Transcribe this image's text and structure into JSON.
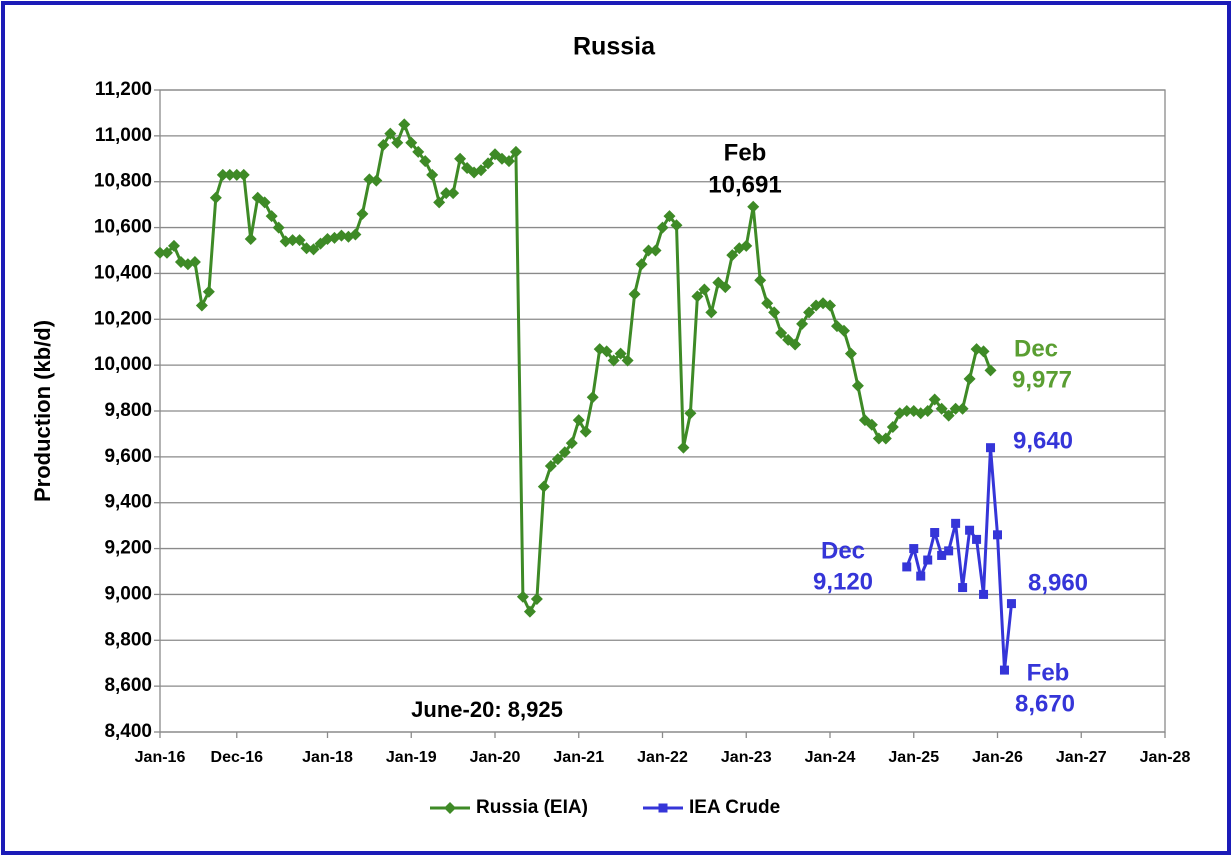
{
  "chart_data": {
    "type": "line",
    "title": "Russia",
    "y_label": "Production (kb/d)",
    "ylim": [
      8400,
      11200
    ],
    "yticks": [
      {
        "value": 8400,
        "label": "8,400"
      },
      {
        "value": 8600,
        "label": "8,600"
      },
      {
        "value": 8800,
        "label": "8,800"
      },
      {
        "value": 9000,
        "label": "9,000"
      },
      {
        "value": 9200,
        "label": "9,200"
      },
      {
        "value": 9400,
        "label": "9,400"
      },
      {
        "value": 9600,
        "label": "9,600"
      },
      {
        "value": 9800,
        "label": "9,800"
      },
      {
        "value": 10000,
        "label": "10,000"
      },
      {
        "value": 10200,
        "label": "10,200"
      },
      {
        "value": 10400,
        "label": "10,400"
      },
      {
        "value": 10600,
        "label": "10,600"
      },
      {
        "value": 10800,
        "label": "10,800"
      },
      {
        "value": 11000,
        "label": "11,000"
      },
      {
        "value": 11200,
        "label": "11,200"
      }
    ],
    "xlim": [
      "2016-01",
      "2028-01"
    ],
    "xticks": [
      {
        "value": "2016-01",
        "label": "Jan-16"
      },
      {
        "value": "2016-12",
        "label": "Dec-16"
      },
      {
        "value": "2018-01",
        "label": "Jan-18"
      },
      {
        "value": "2019-01",
        "label": "Jan-19"
      },
      {
        "value": "2020-01",
        "label": "Jan-20"
      },
      {
        "value": "2021-01",
        "label": "Jan-21"
      },
      {
        "value": "2022-01",
        "label": "Jan-22"
      },
      {
        "value": "2023-01",
        "label": "Jan-23"
      },
      {
        "value": "2024-01",
        "label": "Jan-24"
      },
      {
        "value": "2025-01",
        "label": "Jan-25"
      },
      {
        "value": "2026-01",
        "label": "Jan-26"
      },
      {
        "value": "2027-01",
        "label": "Jan-27"
      },
      {
        "value": "2028-01",
        "label": "Jan-28"
      }
    ],
    "grid": true,
    "legend": "bottom",
    "series": [
      {
        "name": "Russia (EIA)",
        "color": "#3e8a26",
        "marker": "diamond",
        "x": [
          "2016-01",
          "2016-02",
          "2016-03",
          "2016-04",
          "2016-05",
          "2016-06",
          "2016-07",
          "2016-08",
          "2016-09",
          "2016-10",
          "2016-11",
          "2016-12",
          "2017-01",
          "2017-02",
          "2017-03",
          "2017-04",
          "2017-05",
          "2017-06",
          "2017-07",
          "2017-08",
          "2017-09",
          "2017-10",
          "2017-11",
          "2017-12",
          "2018-01",
          "2018-02",
          "2018-03",
          "2018-04",
          "2018-05",
          "2018-06",
          "2018-07",
          "2018-08",
          "2018-09",
          "2018-10",
          "2018-11",
          "2018-12",
          "2019-01",
          "2019-02",
          "2019-03",
          "2019-04",
          "2019-05",
          "2019-06",
          "2019-07",
          "2019-08",
          "2019-09",
          "2019-10",
          "2019-11",
          "2019-12",
          "2020-01",
          "2020-02",
          "2020-03",
          "2020-04",
          "2020-05",
          "2020-06",
          "2020-07",
          "2020-08",
          "2020-09",
          "2020-10",
          "2020-11",
          "2020-12",
          "2021-01",
          "2021-02",
          "2021-03",
          "2021-04",
          "2021-05",
          "2021-06",
          "2021-07",
          "2021-08",
          "2021-09",
          "2021-10",
          "2021-11",
          "2021-12",
          "2022-01",
          "2022-02",
          "2022-03",
          "2022-04",
          "2022-05",
          "2022-06",
          "2022-07",
          "2022-08",
          "2022-09",
          "2022-10",
          "2022-11",
          "2022-12",
          "2023-01",
          "2023-02",
          "2023-03",
          "2023-04",
          "2023-05",
          "2023-06",
          "2023-07",
          "2023-08",
          "2023-09",
          "2023-10",
          "2023-11",
          "2023-12",
          "2024-01",
          "2024-02",
          "2024-03",
          "2024-04",
          "2024-05",
          "2024-06",
          "2024-07",
          "2024-08",
          "2024-09",
          "2024-10",
          "2024-11",
          "2024-12",
          "2025-01",
          "2025-02",
          "2025-03",
          "2025-04",
          "2025-05",
          "2025-06",
          "2025-07",
          "2025-08",
          "2025-09",
          "2025-10",
          "2025-11",
          "2025-12"
        ],
        "values": [
          10490,
          10490,
          10520,
          10450,
          10440,
          10450,
          10260,
          10320,
          10730,
          10830,
          10830,
          10830,
          10830,
          10550,
          10730,
          10710,
          10650,
          10600,
          10540,
          10545,
          10545,
          10510,
          10505,
          10530,
          10550,
          10555,
          10565,
          10560,
          10570,
          10660,
          10810,
          10805,
          10960,
          11010,
          10970,
          11050,
          10970,
          10930,
          10890,
          10830,
          10710,
          10750,
          10750,
          10900,
          10860,
          10840,
          10850,
          10880,
          10920,
          10900,
          10890,
          10930,
          8990,
          8925,
          8980,
          9470,
          9560,
          9590,
          9620,
          9660,
          9760,
          9710,
          9860,
          10070,
          10060,
          10020,
          10050,
          10020,
          10310,
          10440,
          10500,
          10500,
          10600,
          10650,
          10610,
          9640,
          9790,
          10300,
          10330,
          10230,
          10360,
          10340,
          10480,
          10510,
          10520,
          10691,
          10370,
          10270,
          10230,
          10140,
          10110,
          10090,
          10180,
          10230,
          10260,
          10270,
          10260,
          10170,
          10150,
          10050,
          9910,
          9760,
          9740,
          9680,
          9680,
          9730,
          9790,
          9800,
          9800,
          9790,
          9800,
          9850,
          9810,
          9780,
          9810,
          9810,
          9940,
          10070,
          10060,
          9977
        ]
      },
      {
        "name": "IEA Crude",
        "color": "#3535d8",
        "marker": "square",
        "x": [
          "2024-12",
          "2025-01",
          "2025-02",
          "2025-03",
          "2025-04",
          "2025-05",
          "2025-06",
          "2025-07",
          "2025-08",
          "2025-09",
          "2025-10",
          "2025-11",
          "2025-12",
          "2026-01",
          "2026-02",
          "2026-03"
        ],
        "values": [
          9120,
          9200,
          9080,
          9150,
          9270,
          9170,
          9190,
          9310,
          9030,
          9280,
          9240,
          9000,
          9640,
          9260,
          8670,
          8960
        ]
      }
    ],
    "annotations": [
      {
        "lines": [
          "Feb",
          "10,691"
        ]
      },
      {
        "lines": [
          "Dec",
          "9,977"
        ]
      },
      {
        "lines": [
          "9,640"
        ]
      },
      {
        "lines": [
          "Dec",
          "9,120"
        ]
      },
      {
        "lines": [
          "8,960"
        ]
      },
      {
        "lines": [
          "Feb",
          "8,670"
        ]
      },
      {
        "lines": [
          "June-20: 8,925"
        ]
      }
    ]
  }
}
